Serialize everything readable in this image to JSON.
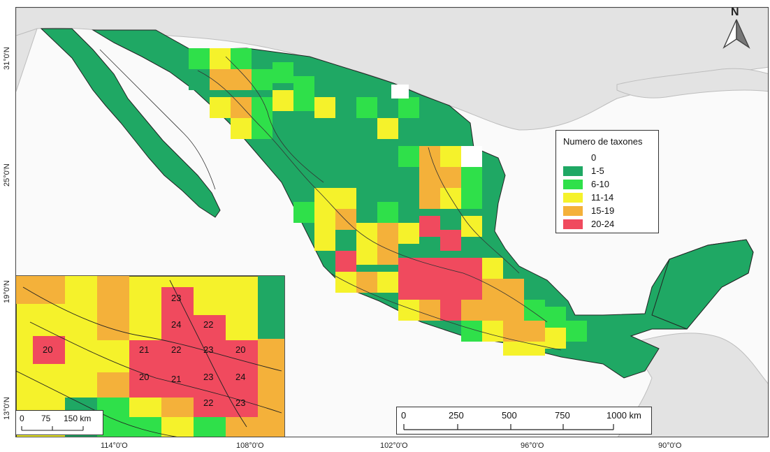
{
  "map": {
    "north_label": "N",
    "lat_labels": [
      "31°0'N",
      "25°0'N",
      "19°0'N",
      "13°0'N"
    ],
    "lon_labels": [
      "114°0'O",
      "108°0'O",
      "102°0'O",
      "96°0'O",
      "90°0'O"
    ],
    "legend": {
      "title": "Numero de taxones",
      "items": [
        {
          "label": "0",
          "color": "#ffffff"
        },
        {
          "label": "1-5",
          "color": "#1fa864"
        },
        {
          "label": "6-10",
          "color": "#2fe04a"
        },
        {
          "label": "11-14",
          "color": "#f5f22b"
        },
        {
          "label": "15-19",
          "color": "#f4b13a"
        },
        {
          "label": "20-24",
          "color": "#f04a5e"
        }
      ]
    },
    "scale_main": {
      "ticks": [
        "0",
        "250",
        "500",
        "750",
        "1000 km"
      ]
    },
    "scale_inset": {
      "ticks": [
        "0",
        "75",
        "150 km"
      ]
    },
    "inset_values": [
      "23",
      "24",
      "22",
      "20",
      "21",
      "22",
      "23",
      "20",
      "20",
      "21",
      "23",
      "24",
      "22",
      "23"
    ]
  }
}
